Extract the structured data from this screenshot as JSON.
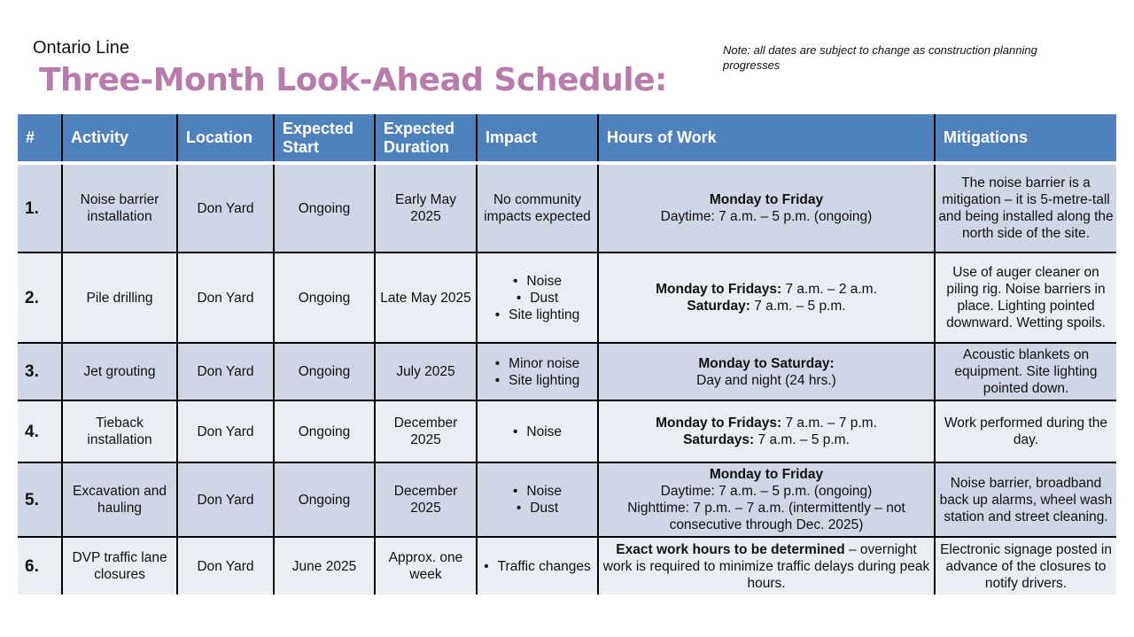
{
  "header": {
    "brand": "Ontario Line",
    "title": "Three-Month Look-Ahead Schedule:",
    "note": "Note: all dates are subject to change as construction planning progresses"
  },
  "colors": {
    "header_bg": "#4f81bd",
    "title": "#b87cac",
    "row_odd": "#cfd7e6",
    "row_even": "#e9edf4"
  },
  "table": {
    "columns": [
      "#",
      "Activity",
      "Location",
      "Expected Start",
      "Expected Duration",
      "Impact",
      "Hours of Work",
      "Mitigations"
    ],
    "rows": [
      {
        "num": "1.",
        "activity": "Noise barrier installation",
        "location": "Don Yard",
        "start": "Ongoing",
        "duration": "Early May 2025",
        "impact_text": "No community impacts expected",
        "impacts": [],
        "hours": [
          [
            {
              "b": "Monday to Friday",
              "t": ""
            }
          ],
          [
            {
              "b": "",
              "t": "Daytime: 7 a.m. – 5 p.m. (ongoing)"
            }
          ]
        ],
        "mitigations": "The noise barrier is a mitigation – it is 5-metre-tall and being installed along the north side of the site."
      },
      {
        "num": "2.",
        "activity": "Pile drilling",
        "location": "Don Yard",
        "start": "Ongoing",
        "duration": "Late May 2025",
        "impact_text": "",
        "impacts": [
          "Noise",
          "Dust",
          "Site lighting"
        ],
        "hours": [
          [
            {
              "b": "Monday to Fridays:",
              "t": " 7 a.m. – 2 a.m."
            }
          ],
          [
            {
              "b": "Saturday:",
              "t": " 7 a.m. – 5 p.m."
            }
          ]
        ],
        "mitigations": "Use of auger cleaner on piling rig. Noise barriers in place. Lighting pointed downward. Wetting spoils."
      },
      {
        "num": "3.",
        "activity": "Jet grouting",
        "location": "Don Yard",
        "start": "Ongoing",
        "duration": "July 2025",
        "impact_text": "",
        "impacts": [
          "Minor noise",
          "Site lighting"
        ],
        "hours": [
          [
            {
              "b": "Monday to Saturday:",
              "t": ""
            }
          ],
          [
            {
              "b": "",
              "t": "Day and night (24 hrs.)"
            }
          ]
        ],
        "mitigations": "Acoustic blankets on equipment. Site lighting pointed down."
      },
      {
        "num": "4.",
        "activity": "Tieback installation",
        "location": "Don Yard",
        "start": "Ongoing",
        "duration": "December 2025",
        "impact_text": "",
        "impacts": [
          "Noise"
        ],
        "hours": [
          [
            {
              "b": "Monday to Fridays:",
              "t": " 7 a.m. – 7 p.m."
            }
          ],
          [
            {
              "b": "Saturdays:",
              "t": " 7 a.m. – 5 p.m."
            }
          ]
        ],
        "mitigations": "Work performed during the day."
      },
      {
        "num": "5.",
        "activity": "Excavation and hauling",
        "location": "Don Yard",
        "start": "Ongoing",
        "duration": "December 2025",
        "impact_text": "",
        "impacts": [
          "Noise",
          "Dust"
        ],
        "hours": [
          [
            {
              "b": "Monday to Friday",
              "t": ""
            }
          ],
          [
            {
              "b": "",
              "t": "Daytime: 7 a.m. – 5 p.m. (ongoing)"
            }
          ],
          [
            {
              "b": "",
              "t": "Nighttime: 7 p.m. – 7 a.m. (intermittently – not consecutive through Dec. 2025)"
            }
          ]
        ],
        "mitigations": "Noise barrier, broadband back up alarms, wheel wash station and street cleaning."
      },
      {
        "num": "6.",
        "activity": "DVP traffic lane closures",
        "location": "Don Yard",
        "start": "June 2025",
        "duration": "Approx. one week",
        "impact_text": "",
        "impacts": [
          "Traffic changes"
        ],
        "hours": [
          [
            {
              "b": "Exact work hours to be determined",
              "t": " – overnight work is required to minimize traffic delays during peak hours."
            }
          ]
        ],
        "mitigations": "Electronic signage posted in advance of the closures to notify drivers."
      }
    ]
  }
}
